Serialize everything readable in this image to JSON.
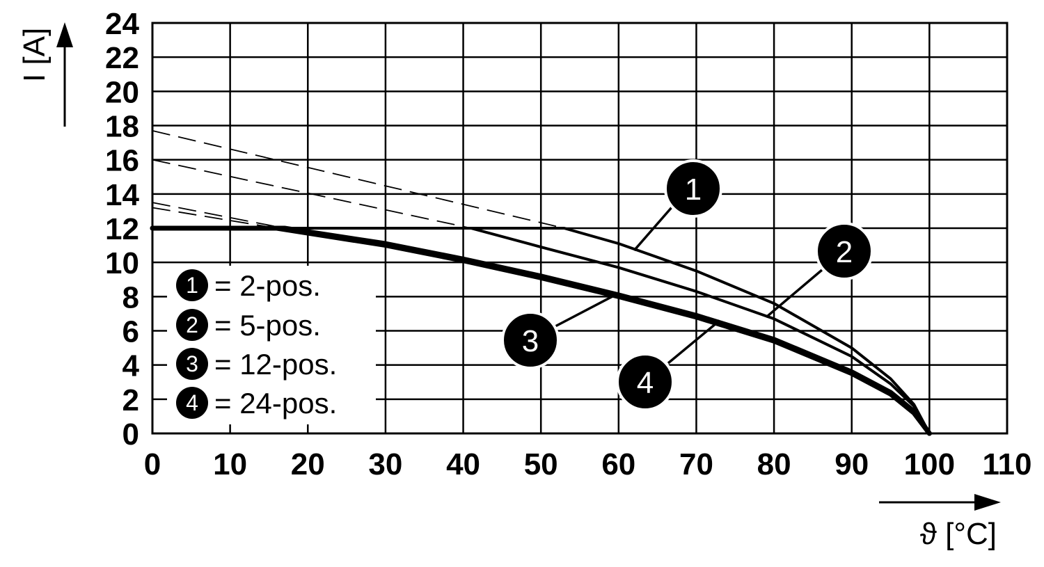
{
  "chart_data": {
    "type": "line",
    "title": "",
    "xlabel": "ϑ [°C]",
    "ylabel": "I [A]",
    "xlim": [
      0,
      110
    ],
    "ylim": [
      0,
      24
    ],
    "x_ticks": [
      "0",
      "10",
      "20",
      "30",
      "40",
      "50",
      "60",
      "70",
      "80",
      "90",
      "100",
      "110"
    ],
    "y_ticks": [
      "0",
      "2",
      "4",
      "6",
      "8",
      "10",
      "12",
      "14",
      "16",
      "18",
      "20",
      "22",
      "24"
    ],
    "grid": true,
    "legend_position": "bottom-left",
    "series": [
      {
        "name": "2-pos.",
        "marker": "1",
        "extrapolated": [
          [
            0,
            17.7
          ],
          [
            53,
            12.0
          ]
        ],
        "values": [
          [
            0,
            12.0
          ],
          [
            53,
            12.0
          ],
          [
            60,
            11.1
          ],
          [
            70,
            9.5
          ],
          [
            80,
            7.6
          ],
          [
            90,
            5.0
          ],
          [
            95,
            3.2
          ],
          [
            98,
            1.7
          ],
          [
            100,
            0
          ]
        ]
      },
      {
        "name": "5-pos.",
        "marker": "2",
        "extrapolated": [
          [
            0,
            16.0
          ],
          [
            41,
            12.0
          ]
        ],
        "values": [
          [
            0,
            12.0
          ],
          [
            41,
            12.0
          ],
          [
            50,
            10.9
          ],
          [
            60,
            9.7
          ],
          [
            70,
            8.3
          ],
          [
            80,
            6.7
          ],
          [
            90,
            4.5
          ],
          [
            95,
            2.9
          ],
          [
            98,
            1.6
          ],
          [
            100,
            0
          ]
        ]
      },
      {
        "name": "12-pos.",
        "marker": "3",
        "extrapolated": [
          [
            0,
            13.5
          ],
          [
            17,
            12.0
          ]
        ],
        "values": [
          [
            0,
            12.0
          ],
          [
            17,
            12.0
          ],
          [
            30,
            11.1
          ],
          [
            40,
            10.2
          ],
          [
            50,
            9.2
          ],
          [
            60,
            8.1
          ],
          [
            70,
            6.9
          ],
          [
            80,
            5.5
          ],
          [
            90,
            3.6
          ],
          [
            95,
            2.4
          ],
          [
            98,
            1.3
          ],
          [
            100,
            0
          ]
        ]
      },
      {
        "name": "24-pos.",
        "marker": "4",
        "extrapolated": [
          [
            0,
            13.2
          ],
          [
            16,
            12.0
          ]
        ],
        "values": [
          [
            0,
            12.0
          ],
          [
            16,
            12.0
          ],
          [
            30,
            11.0
          ],
          [
            40,
            10.1
          ],
          [
            50,
            9.1
          ],
          [
            60,
            8.0
          ],
          [
            70,
            6.8
          ],
          [
            80,
            5.4
          ],
          [
            90,
            3.5
          ],
          [
            95,
            2.3
          ],
          [
            98,
            1.2
          ],
          [
            100,
            0
          ]
        ]
      }
    ],
    "callouts": [
      {
        "marker": "1",
        "at": [
          62,
          10.7
        ]
      },
      {
        "marker": "2",
        "at": [
          79,
          6.8
        ]
      },
      {
        "marker": "3",
        "at": [
          60,
          8.2
        ]
      },
      {
        "marker": "4",
        "at": [
          73,
          6.6
        ]
      }
    ],
    "legend_entries": [
      "= 2-pos.",
      "= 5-pos.",
      "= 12-pos.",
      "= 24-pos."
    ]
  }
}
